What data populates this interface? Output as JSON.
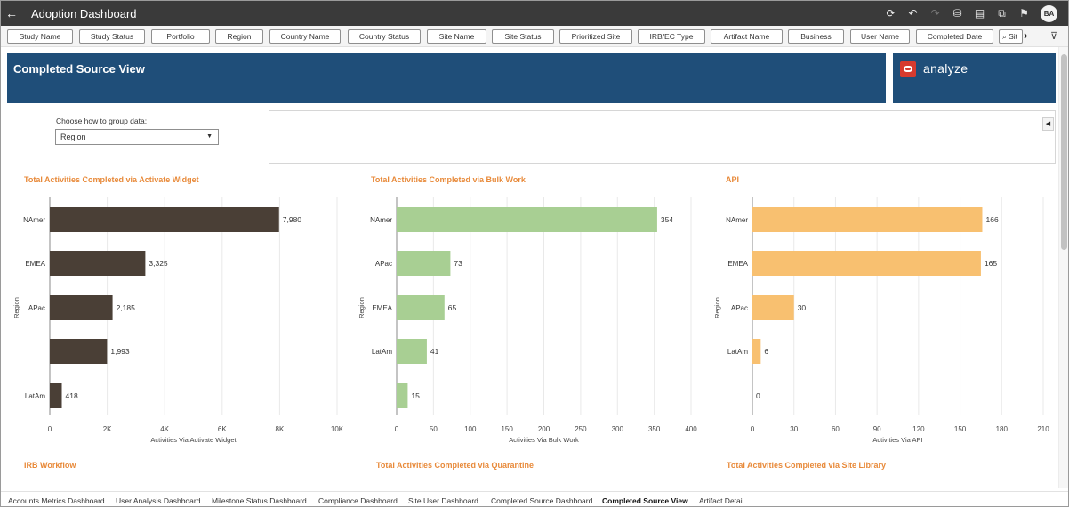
{
  "topbar": {
    "back_icon": "←",
    "title": "Adoption Dashboard",
    "tools": [
      {
        "name": "refresh-icon",
        "glyph": "⟳"
      },
      {
        "name": "undo-icon",
        "glyph": "↶"
      },
      {
        "name": "redo-icon",
        "glyph": "↷"
      },
      {
        "name": "database-icon",
        "glyph": "⛁"
      },
      {
        "name": "comment-icon",
        "glyph": "▤"
      },
      {
        "name": "present-icon",
        "glyph": "⧉"
      },
      {
        "name": "bookmark-icon",
        "glyph": "⚑"
      }
    ],
    "avatar": "BA"
  },
  "filters": [
    "Study Name",
    "Study Status",
    "Portfolio",
    "Region",
    "Country Name",
    "Country Status",
    "Site Name",
    "Site Status",
    "Prioritized Site",
    "IRB/EC Type",
    "Artifact Name",
    "Business",
    "User Name",
    "Completed Date",
    "⌕ Sit"
  ],
  "filter_more_icon": "›",
  "filter_icon": "⊽",
  "header": {
    "title": "Completed Source View",
    "logo_text": "analyze"
  },
  "group": {
    "label": "Choose how to group data:",
    "selected": "Region",
    "caret": "▼"
  },
  "panel_toggle": "◀",
  "colors": {
    "banner": "#1f4e79",
    "title_accent": "#e88a3a",
    "bar_widget": "#4a3f36",
    "bar_bulk": "#a8cf93",
    "bar_api": "#f8c070"
  },
  "chart_data": [
    {
      "type": "bar",
      "orientation": "horizontal",
      "title": "Total Activities Completed via Activate Widget",
      "categories": [
        "NAmer",
        "EMEA",
        "APac",
        "",
        "LatAm"
      ],
      "values": [
        7980,
        3325,
        2185,
        1993,
        418
      ],
      "value_labels": [
        "7,980",
        "3,325",
        "2,185",
        "1,993",
        "418"
      ],
      "xlabel": "Activities Via Activate Widget",
      "ylabel": "Region",
      "xlim": [
        0,
        10000
      ],
      "ticks": [
        0,
        2000,
        4000,
        6000,
        8000,
        10000
      ],
      "tick_labels": [
        "0",
        "2K",
        "4K",
        "6K",
        "8K",
        "10K"
      ],
      "color": "#4a3f36"
    },
    {
      "type": "bar",
      "orientation": "horizontal",
      "title": "Total Activities Completed via Bulk Work",
      "categories": [
        "NAmer",
        "APac",
        "EMEA",
        "LatAm",
        ""
      ],
      "values": [
        354,
        73,
        65,
        41,
        15
      ],
      "value_labels": [
        "354",
        "73",
        "65",
        "41",
        "15"
      ],
      "xlabel": "Activities Via Bulk Work",
      "ylabel": "Region",
      "xlim": [
        0,
        400
      ],
      "ticks": [
        0,
        50,
        100,
        150,
        200,
        250,
        300,
        350,
        400
      ],
      "tick_labels": [
        "0",
        "50",
        "100",
        "150",
        "200",
        "250",
        "300",
        "350",
        "400"
      ],
      "color": "#a8cf93"
    },
    {
      "type": "bar",
      "orientation": "horizontal",
      "title": "API",
      "categories": [
        "NAmer",
        "EMEA",
        "APac",
        "LatAm",
        ""
      ],
      "values": [
        166,
        165,
        30,
        6,
        0
      ],
      "value_labels": [
        "166",
        "165",
        "30",
        "6",
        "0"
      ],
      "xlabel": "Activities Via API",
      "ylabel": "Region",
      "xlim": [
        0,
        210
      ],
      "ticks": [
        0,
        30,
        60,
        90,
        120,
        150,
        180,
        210
      ],
      "tick_labels": [
        "0",
        "30",
        "60",
        "90",
        "120",
        "150",
        "180",
        "210"
      ],
      "color": "#f8c070"
    }
  ],
  "lower_titles": [
    "IRB Workflow",
    "Total Activities Completed via Quarantine",
    "Total Activities Completed via Site Library"
  ],
  "tabs": [
    "Accounts Metrics Dashboard",
    "User Analysis Dashboard",
    "Milestone Status Dashboard",
    "Compliance Dashboard",
    "Site User Dashboard",
    "Completed Source Dashboard",
    "Completed Source View",
    "Artifact Detail"
  ],
  "active_tab": "Completed Source View"
}
